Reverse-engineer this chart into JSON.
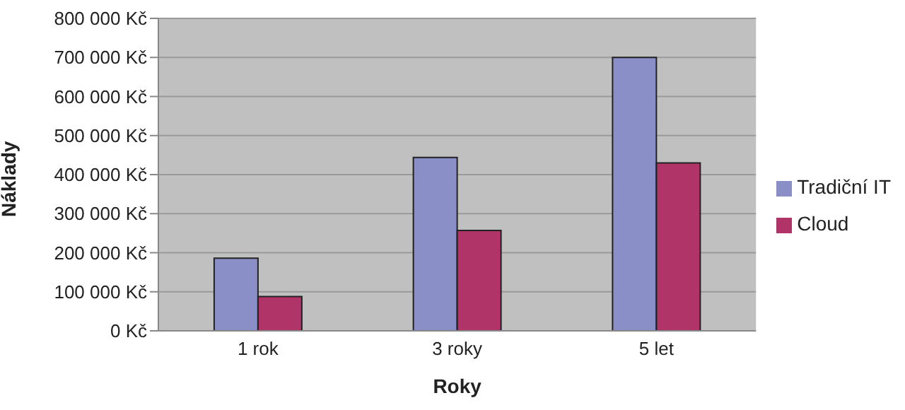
{
  "chart_data": {
    "type": "bar",
    "xlabel": "Roky",
    "ylabel": "Náklady",
    "categories": [
      "1 rok",
      "3 roky",
      "5 let"
    ],
    "series": [
      {
        "name": "Tradiční IT",
        "color": "#8b8fc8",
        "values": [
          186000,
          444000,
          700000
        ]
      },
      {
        "name": "Cloud",
        "color": "#b03468",
        "values": [
          88000,
          257000,
          430000
        ]
      }
    ],
    "ylim": [
      0,
      800000
    ],
    "yticks": [
      {
        "value": 0,
        "label": "0 Kč"
      },
      {
        "value": 100000,
        "label": "100 000 Kč"
      },
      {
        "value": 200000,
        "label": "200 000 Kč"
      },
      {
        "value": 300000,
        "label": "300 000 Kč"
      },
      {
        "value": 400000,
        "label": "400 000 Kč"
      },
      {
        "value": 500000,
        "label": "500 000 Kč"
      },
      {
        "value": 600000,
        "label": "600 000 Kč"
      },
      {
        "value": 700000,
        "label": "700 000 Kč"
      },
      {
        "value": 800000,
        "label": "800 000 Kč"
      }
    ],
    "grid": "y",
    "legend": "right"
  }
}
